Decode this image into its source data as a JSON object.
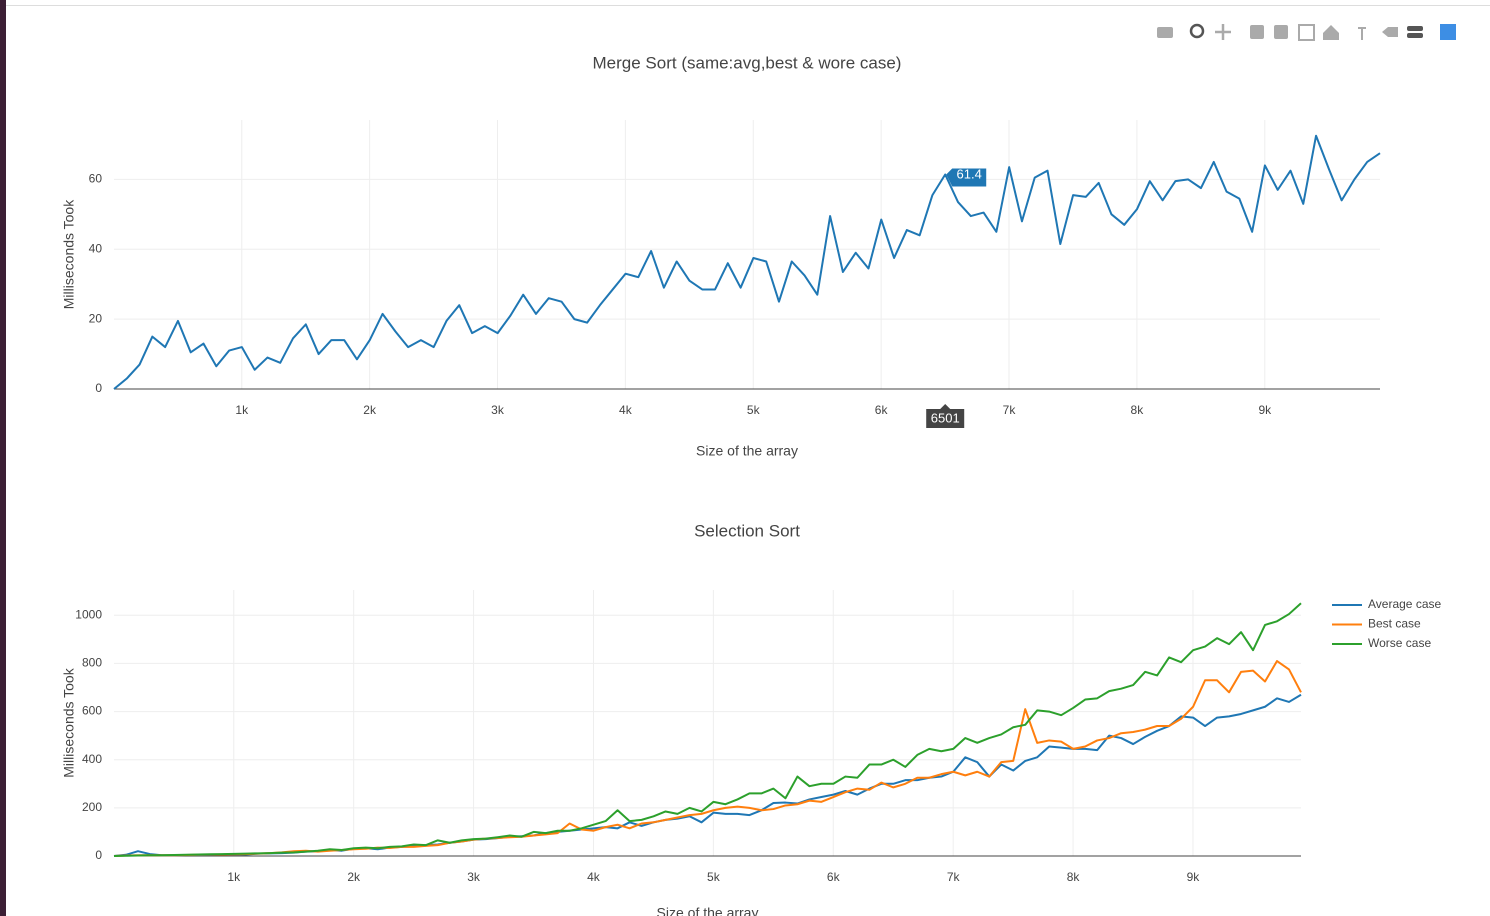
{
  "chart_data": [
    {
      "type": "line",
      "title": "Merge Sort (same:avg,best & wore case)",
      "x_label": "Size of the array",
      "y_label": "Milliseconds Took",
      "x": [
        1,
        101,
        201,
        301,
        401,
        501,
        601,
        701,
        801,
        901,
        1001,
        1101,
        1201,
        1301,
        1401,
        1501,
        1601,
        1701,
        1801,
        1901,
        2001,
        2101,
        2201,
        2301,
        2401,
        2501,
        2601,
        2701,
        2801,
        2901,
        3001,
        3101,
        3201,
        3301,
        3401,
        3501,
        3601,
        3701,
        3801,
        3901,
        4001,
        4101,
        4201,
        4301,
        4401,
        4501,
        4601,
        4701,
        4801,
        4901,
        5001,
        5101,
        5201,
        5301,
        5401,
        5501,
        5601,
        5701,
        5801,
        5901,
        6001,
        6101,
        6201,
        6301,
        6401,
        6501,
        6601,
        6701,
        6801,
        6901,
        7001,
        7101,
        7201,
        7301,
        7401,
        7501,
        7601,
        7701,
        7801,
        7901,
        8001,
        8101,
        8201,
        8301,
        8401,
        8501,
        8601,
        8701,
        8801,
        8901,
        9001,
        9101,
        9201,
        9301,
        9401,
        9501,
        9601,
        9701,
        9801,
        9901
      ],
      "series": [
        {
          "color": "#1f77b4",
          "values": [
            0,
            3,
            7,
            15,
            12,
            19.5,
            10.5,
            13,
            6.5,
            11,
            12,
            5.5,
            9,
            7.5,
            14.5,
            18.5,
            10,
            14,
            14,
            8.5,
            14,
            21.5,
            16.5,
            12,
            14,
            12,
            19.5,
            24,
            16,
            18,
            16,
            21,
            27,
            21.5,
            26,
            25,
            20,
            19,
            24,
            28.5,
            33,
            32,
            39.5,
            29,
            36.5,
            31,
            28.5,
            28.5,
            36,
            29,
            37.5,
            36.5,
            25,
            36.5,
            32.5,
            27,
            49.5,
            33.5,
            39,
            34.5,
            48.5,
            37.5,
            45.5,
            44,
            55.5,
            61.4,
            53.5,
            49.5,
            50.5,
            45,
            63.5,
            48,
            60.5,
            62.5,
            41.5,
            55.5,
            55,
            59,
            50,
            47,
            51.5,
            59.5,
            54,
            59.5,
            60,
            57.5,
            65,
            56.5,
            54.5,
            45,
            64,
            57,
            62.5,
            53,
            72.5,
            63,
            54,
            60,
            65,
            67.5
          ]
        }
      ],
      "xlim": [
        1,
        9901
      ],
      "ylim": [
        0,
        77
      ],
      "xticks": [
        {
          "value": 1000,
          "label": "1k"
        },
        {
          "value": 2000,
          "label": "2k"
        },
        {
          "value": 3000,
          "label": "3k"
        },
        {
          "value": 4000,
          "label": "4k"
        },
        {
          "value": 5000,
          "label": "5k"
        },
        {
          "value": 6000,
          "label": "6k"
        },
        {
          "value": 7000,
          "label": "7k"
        },
        {
          "value": 8000,
          "label": "8k"
        },
        {
          "value": 9000,
          "label": "9k"
        }
      ],
      "yticks": [
        0,
        20,
        40,
        60
      ],
      "grid": true,
      "hover_index": 65
    },
    {
      "type": "line",
      "title": "Selection Sort",
      "x_label": "Size of the array",
      "y_label": "Milliseconds Took",
      "x": [
        1,
        101,
        201,
        301,
        401,
        501,
        601,
        701,
        801,
        901,
        1001,
        1101,
        1201,
        1301,
        1401,
        1501,
        1601,
        1701,
        1801,
        1901,
        2001,
        2101,
        2201,
        2301,
        2401,
        2501,
        2601,
        2701,
        2801,
        2901,
        3001,
        3101,
        3201,
        3301,
        3401,
        3501,
        3601,
        3701,
        3801,
        3901,
        4001,
        4101,
        4201,
        4301,
        4401,
        4501,
        4601,
        4701,
        4801,
        4901,
        5001,
        5101,
        5201,
        5301,
        5401,
        5501,
        5601,
        5701,
        5801,
        5901,
        6001,
        6101,
        6201,
        6301,
        6401,
        6501,
        6601,
        6701,
        6801,
        6901,
        7001,
        7101,
        7201,
        7301,
        7401,
        7501,
        7601,
        7701,
        7801,
        7901,
        8001,
        8101,
        8201,
        8301,
        8401,
        8501,
        8601,
        8701,
        8801,
        8901,
        9001,
        9101,
        9201,
        9301,
        9401,
        9501,
        9601,
        9701,
        9801,
        9901
      ],
      "series": [
        {
          "name": "Average case",
          "color": "#1f77b4",
          "values": [
            0,
            5,
            20,
            8,
            3,
            3,
            4,
            4,
            5,
            6,
            7,
            6,
            10,
            11,
            12,
            14,
            18,
            20,
            25,
            22,
            30,
            32,
            28,
            35,
            38,
            40,
            45,
            48,
            55,
            60,
            68,
            70,
            74,
            80,
            82,
            85,
            95,
            100,
            105,
            110,
            115,
            120,
            115,
            140,
            125,
            140,
            150,
            155,
            165,
            140,
            180,
            175,
            175,
            170,
            190,
            220,
            222,
            218,
            235,
            245,
            255,
            270,
            255,
            280,
            300,
            300,
            315,
            315,
            325,
            330,
            350,
            410,
            390,
            330,
            380,
            355,
            395,
            410,
            455,
            450,
            445,
            445,
            440,
            500,
            490,
            465,
            495,
            520,
            540,
            580,
            575,
            540,
            575,
            580,
            590,
            605,
            620,
            655,
            640,
            670
          ]
        },
        {
          "name": "Best case",
          "color": "#ff7f0e",
          "values": [
            0,
            2,
            3,
            3,
            3,
            3,
            4,
            5,
            6,
            6,
            7,
            8,
            10,
            12,
            15,
            20,
            22,
            18,
            22,
            25,
            28,
            30,
            35,
            33,
            38,
            38,
            42,
            45,
            55,
            60,
            68,
            72,
            75,
            78,
            80,
            85,
            90,
            95,
            135,
            110,
            105,
            120,
            130,
            115,
            135,
            140,
            150,
            160,
            170,
            175,
            190,
            200,
            205,
            200,
            190,
            195,
            210,
            215,
            230,
            225,
            245,
            265,
            280,
            275,
            305,
            285,
            300,
            325,
            325,
            340,
            350,
            335,
            350,
            330,
            390,
            395,
            610,
            470,
            480,
            475,
            445,
            455,
            480,
            490,
            510,
            515,
            525,
            540,
            540,
            570,
            620,
            730,
            730,
            680,
            765,
            770,
            725,
            810,
            775,
            680
          ]
        },
        {
          "name": "Worse case",
          "color": "#2ca02c",
          "values": [
            0,
            1,
            2,
            3,
            3,
            4,
            5,
            6,
            7,
            8,
            9,
            10,
            11,
            12,
            14,
            15,
            18,
            22,
            28,
            25,
            32,
            35,
            32,
            38,
            40,
            48,
            45,
            65,
            55,
            65,
            70,
            72,
            78,
            85,
            80,
            100,
            95,
            105,
            105,
            115,
            130,
            145,
            190,
            145,
            150,
            165,
            185,
            175,
            200,
            185,
            225,
            215,
            235,
            260,
            260,
            280,
            240,
            330,
            290,
            300,
            300,
            330,
            325,
            380,
            380,
            400,
            370,
            420,
            445,
            435,
            445,
            490,
            470,
            490,
            505,
            535,
            545,
            605,
            600,
            585,
            615,
            650,
            655,
            685,
            695,
            710,
            765,
            750,
            825,
            805,
            855,
            870,
            905,
            880,
            930,
            855,
            960,
            975,
            1005,
            1050
          ]
        }
      ],
      "xlim": [
        1,
        9901
      ],
      "ylim": [
        0,
        1105
      ],
      "xticks": [
        {
          "value": 1000,
          "label": "1k"
        },
        {
          "value": 2000,
          "label": "2k"
        },
        {
          "value": 3000,
          "label": "3k"
        },
        {
          "value": 4000,
          "label": "4k"
        },
        {
          "value": 5000,
          "label": "5k"
        },
        {
          "value": 6000,
          "label": "6k"
        },
        {
          "value": 7000,
          "label": "7k"
        },
        {
          "value": 8000,
          "label": "8k"
        },
        {
          "value": 9000,
          "label": "9k"
        }
      ],
      "yticks": [
        0,
        200,
        400,
        600,
        800,
        1000
      ],
      "grid": true,
      "legend": "top-right"
    }
  ]
}
